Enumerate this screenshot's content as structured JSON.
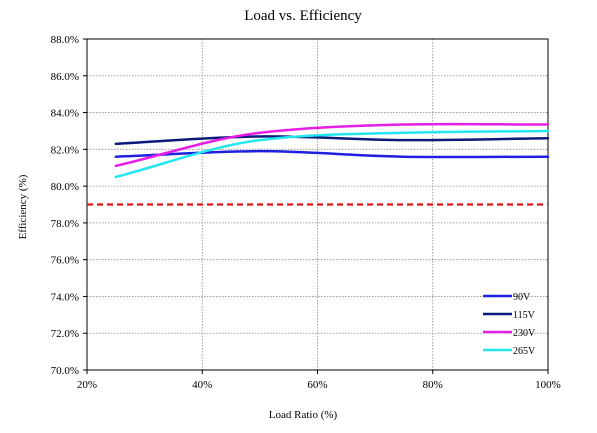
{
  "chart_data": {
    "type": "line",
    "title": "Load vs. Efficiency",
    "xlabel": "Load Ratio (%)",
    "ylabel": "Efficiency (%)",
    "xlim": [
      20,
      100
    ],
    "ylim": [
      70,
      88
    ],
    "x_ticks": [
      20,
      40,
      60,
      80,
      100
    ],
    "x_tick_labels": [
      "20%",
      "40%",
      "60%",
      "80%",
      "100%"
    ],
    "y_ticks": [
      70,
      72,
      74,
      76,
      78,
      80,
      82,
      84,
      86,
      88
    ],
    "y_tick_labels": [
      "70.0%",
      "72.0%",
      "74.0%",
      "76.0%",
      "78.0%",
      "80.0%",
      "82.0%",
      "84.0%",
      "86.0%",
      "88.0%"
    ],
    "grid": true,
    "legend_position": "bottom-right",
    "x": [
      25,
      50,
      75,
      100
    ],
    "series": [
      {
        "name": "90V",
        "color": "#1f1fe0",
        "values": [
          81.6,
          81.9,
          81.6,
          81.6
        ]
      },
      {
        "name": "115V",
        "color": "#0a1a7a",
        "values": [
          82.3,
          82.7,
          82.5,
          82.6
        ]
      },
      {
        "name": "230V",
        "color": "#e61ee6",
        "values": [
          81.1,
          82.9,
          83.35,
          83.35
        ]
      },
      {
        "name": "265V",
        "color": "#22e6f0",
        "values": [
          80.5,
          82.5,
          82.9,
          83.0
        ]
      }
    ],
    "reference_line": {
      "y": 79.0,
      "color": "#e01010",
      "style": "dashed"
    }
  }
}
